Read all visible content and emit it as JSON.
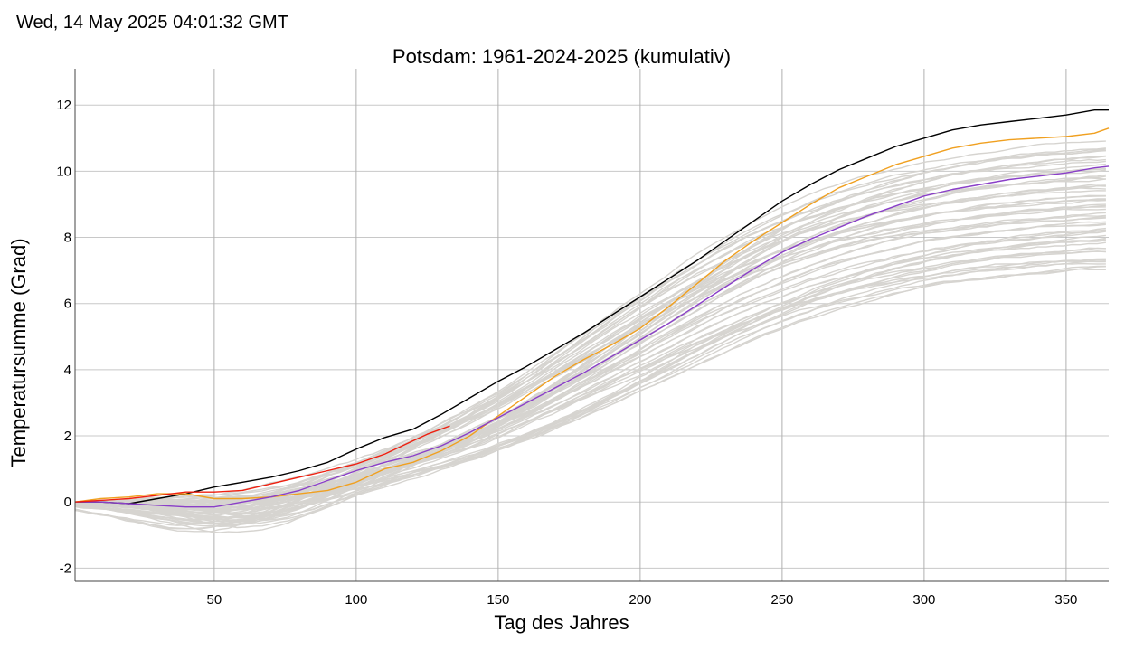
{
  "timestamp": "Wed, 14 May 2025 04:01:32 GMT",
  "chart_data": {
    "type": "line",
    "title": "Potsdam: 1961-2024-2025 (kumulativ)",
    "xlabel": "Tag des Jahres",
    "ylabel": "Temperatursumme (Grad)",
    "xlim": [
      1,
      365
    ],
    "ylim": [
      -2.4,
      13.1
    ],
    "xticks": [
      50,
      100,
      150,
      200,
      250,
      300,
      350
    ],
    "yticks": [
      -2,
      0,
      2,
      4,
      6,
      8,
      10,
      12
    ],
    "grid": true,
    "legend": "none",
    "colors": {
      "background_years": "#d6d4d0",
      "year_black": "#000000",
      "year_orange": "#f0a020",
      "year_purple": "#8a3fc8",
      "year_red": "#ee2010",
      "grid": "#c8c8c8",
      "axis": "#444444"
    },
    "highlight_series": [
      {
        "color": "#000000",
        "x": [
          1,
          10,
          20,
          30,
          40,
          50,
          60,
          70,
          80,
          90,
          100,
          110,
          120,
          130,
          140,
          150,
          160,
          170,
          180,
          190,
          200,
          210,
          220,
          230,
          240,
          250,
          260,
          270,
          280,
          290,
          300,
          310,
          320,
          330,
          340,
          350,
          360,
          365
        ],
        "y": [
          0.0,
          0.0,
          -0.05,
          0.1,
          0.25,
          0.45,
          0.6,
          0.75,
          0.95,
          1.2,
          1.6,
          1.95,
          2.2,
          2.65,
          3.15,
          3.65,
          4.1,
          4.6,
          5.1,
          5.65,
          6.2,
          6.75,
          7.3,
          7.9,
          8.5,
          9.1,
          9.6,
          10.05,
          10.4,
          10.75,
          11.0,
          11.25,
          11.4,
          11.5,
          11.6,
          11.7,
          11.85,
          11.85
        ]
      },
      {
        "color": "#f0a020",
        "x": [
          1,
          10,
          20,
          30,
          40,
          50,
          60,
          70,
          80,
          90,
          100,
          110,
          120,
          130,
          140,
          150,
          160,
          170,
          180,
          190,
          200,
          210,
          220,
          230,
          240,
          250,
          260,
          270,
          280,
          290,
          300,
          310,
          320,
          330,
          340,
          350,
          360,
          365
        ],
        "y": [
          0.0,
          0.1,
          0.15,
          0.25,
          0.25,
          0.1,
          0.1,
          0.15,
          0.25,
          0.35,
          0.6,
          1.0,
          1.2,
          1.55,
          2.0,
          2.6,
          3.2,
          3.8,
          4.3,
          4.75,
          5.25,
          5.9,
          6.6,
          7.3,
          7.9,
          8.45,
          9.0,
          9.5,
          9.85,
          10.2,
          10.45,
          10.7,
          10.85,
          10.95,
          11.0,
          11.05,
          11.15,
          11.3
        ]
      },
      {
        "color": "#8a3fc8",
        "x": [
          1,
          10,
          20,
          30,
          40,
          50,
          60,
          70,
          80,
          90,
          100,
          110,
          120,
          130,
          140,
          150,
          160,
          170,
          180,
          190,
          200,
          210,
          220,
          230,
          240,
          250,
          260,
          270,
          280,
          290,
          300,
          310,
          320,
          330,
          340,
          350,
          360,
          365
        ],
        "y": [
          0.0,
          0.0,
          -0.05,
          -0.1,
          -0.15,
          -0.15,
          0.0,
          0.15,
          0.35,
          0.65,
          0.95,
          1.2,
          1.4,
          1.7,
          2.1,
          2.55,
          3.0,
          3.45,
          3.9,
          4.4,
          4.9,
          5.4,
          5.95,
          6.5,
          7.05,
          7.55,
          7.95,
          8.3,
          8.65,
          8.95,
          9.25,
          9.45,
          9.6,
          9.75,
          9.85,
          9.95,
          10.1,
          10.15
        ]
      },
      {
        "color": "#ee2010",
        "x": [
          1,
          10,
          20,
          30,
          40,
          50,
          60,
          70,
          80,
          90,
          100,
          110,
          120,
          125,
          133
        ],
        "y": [
          0.0,
          0.05,
          0.1,
          0.2,
          0.3,
          0.3,
          0.35,
          0.55,
          0.75,
          0.95,
          1.15,
          1.45,
          1.85,
          2.05,
          2.3
        ]
      }
    ]
  }
}
